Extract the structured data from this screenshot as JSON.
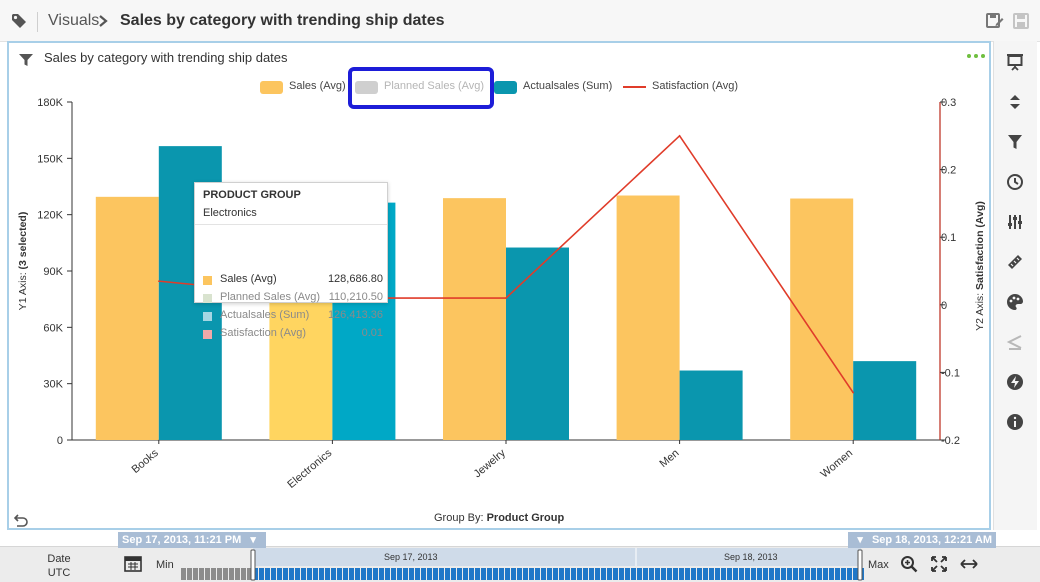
{
  "header": {
    "breadcrumb_root": "Visuals",
    "title": "Sales by category with trending ship dates"
  },
  "visual": {
    "title": "Sales by category with trending ship dates",
    "group_by_label": "Group By:",
    "group_by_value": "Product Group"
  },
  "legend": [
    {
      "label": "Sales (Avg)",
      "color": "#fcc55f",
      "type": "swatch",
      "muted": false
    },
    {
      "label": "Planned Sales (Avg)",
      "color": "#cfcfcf",
      "type": "swatch",
      "muted": true
    },
    {
      "label": "Actualsales (Sum)",
      "color": "#0a96ae",
      "type": "swatch",
      "muted": false
    },
    {
      "label": "Satisfaction (Avg)",
      "color": "#e03c2a",
      "type": "line",
      "muted": false
    }
  ],
  "tooltip": {
    "heading": "PRODUCT GROUP",
    "group": "Electronics",
    "rows": [
      {
        "label": "Sales (Avg)",
        "value": "128,686.80",
        "color": "#fcc55f",
        "muted": false
      },
      {
        "label": "Planned Sales (Avg)",
        "value": "110,210.50",
        "color": "#d9e3cf",
        "muted": true
      },
      {
        "label": "Actualsales (Sum)",
        "value": "126,413.36",
        "color": "#a6d6e3",
        "muted": true
      },
      {
        "label": "Satisfaction (Avg)",
        "value": "0.01",
        "color": "#f0a9a9",
        "muted": true
      }
    ]
  },
  "chart_data": {
    "type": "bar",
    "categories": [
      "Books",
      "Electronics",
      "Jewelry",
      "Men",
      "Women"
    ],
    "series": [
      {
        "name": "Sales (Avg)",
        "type": "bar",
        "axis": "y1",
        "color": "#fcc55f",
        "values": [
          129500,
          128686.8,
          128800,
          130200,
          128600
        ]
      },
      {
        "name": "Actualsales (Sum)",
        "type": "bar",
        "axis": "y1",
        "color": "#0a96ae",
        "values": [
          156500,
          126413.36,
          102500,
          37000,
          42000
        ]
      },
      {
        "name": "Satisfaction (Avg)",
        "type": "line",
        "axis": "y2",
        "color": "#e03c2a",
        "values": [
          0.035,
          0.01,
          0.01,
          0.25,
          -0.13
        ]
      }
    ],
    "y1_label_prefix": "Y1 Axis: ",
    "y1_label_bold": "(3 selected)",
    "y2_label_prefix": "Y2 Axis: ",
    "y2_label_bold": "Satisfaction (Avg)",
    "y1_ticks": [
      "0",
      "30K",
      "60K",
      "90K",
      "120K",
      "150K",
      "180K"
    ],
    "y1_lim": [
      0,
      180000
    ],
    "y2_ticks": [
      "-0.2",
      "-0.1",
      "0",
      "0.1",
      "0.2",
      "0.3"
    ],
    "y2_lim": [
      -0.2,
      0.3
    ],
    "highlighted_category": "Electronics",
    "grid": false
  },
  "timeline": {
    "date_label": "Date",
    "tz_label": "UTC",
    "min_label": "Min",
    "max_label": "Max",
    "start_tag": "Sep 17, 2013, 11:21 PM",
    "end_tag": "Sep 18, 2013, 12:21 AM",
    "tick_labels": [
      "Sep 17, 2013",
      "Sep 18, 2013"
    ]
  }
}
